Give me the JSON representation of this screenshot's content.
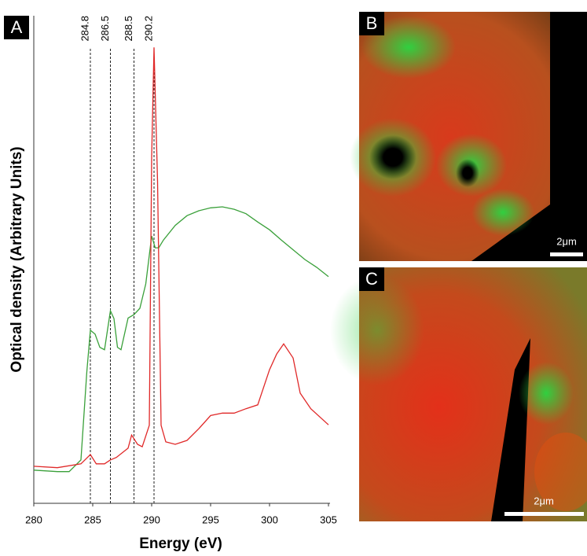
{
  "chart_data": {
    "type": "line",
    "panel_label": "A",
    "x_label": "Energy (eV)",
    "y_label": "Optical density (Arbitrary Units)",
    "xlim": [
      280,
      305
    ],
    "xticks": [
      280,
      285,
      290,
      295,
      300,
      305
    ],
    "ylim": [
      0,
      100
    ],
    "reference_lines": [
      284.8,
      286.5,
      288.5,
      290.2
    ],
    "series": [
      {
        "color": "#3aa03a",
        "x": [
          280,
          282,
          283,
          284,
          284.5,
          284.8,
          285.2,
          285.6,
          286,
          286.5,
          286.8,
          287.1,
          287.4,
          288,
          288.5,
          289,
          289.5,
          290,
          290.3,
          290.6,
          291,
          292,
          293,
          294,
          295,
          296,
          297,
          298,
          299,
          300,
          301,
          302,
          303,
          304,
          305
        ],
        "values": [
          6.8,
          6.5,
          6.5,
          8.9,
          27,
          35.5,
          34.7,
          32,
          31.5,
          39.5,
          37.9,
          32,
          31.5,
          38,
          38.7,
          40,
          45,
          54.8,
          52.4,
          52.4,
          54,
          57,
          59,
          60,
          60.6,
          60.8,
          60.3,
          59.4,
          57.7,
          56.1,
          54,
          52,
          50,
          48.4,
          46.5
        ]
      },
      {
        "color": "#e02828",
        "x": [
          280,
          282,
          284,
          284.8,
          285.3,
          286,
          286.5,
          287,
          288,
          288.3,
          288.8,
          289.2,
          289.8,
          290,
          290.2,
          290.5,
          290.8,
          291.2,
          292,
          293,
          294,
          295,
          296,
          297,
          298,
          299,
          300,
          300.6,
          301.2,
          302,
          302.6,
          303.5,
          305
        ],
        "values": [
          7.6,
          7.3,
          8.1,
          10,
          8.1,
          8.1,
          8.9,
          9.4,
          11.3,
          14,
          12.1,
          11.6,
          16,
          71,
          93.5,
          66,
          16,
          12.6,
          12.1,
          12.9,
          15.3,
          18,
          18.5,
          18.5,
          19.4,
          20.2,
          27.4,
          30.6,
          32.7,
          29.8,
          22.6,
          19.4,
          16.1
        ]
      }
    ]
  },
  "image_panels": [
    {
      "label": "B",
      "scale_bar": "2μm"
    },
    {
      "label": "C",
      "scale_bar": "2μm"
    }
  ]
}
